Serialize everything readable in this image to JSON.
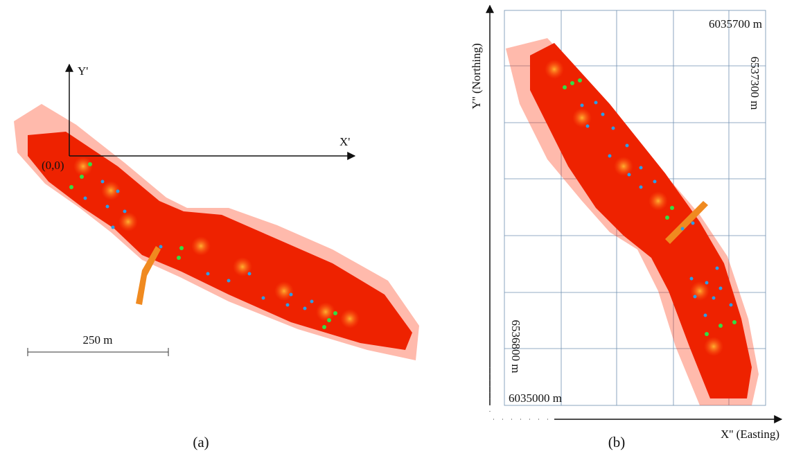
{
  "panel_a": {
    "y_axis": "Y'",
    "x_axis": "X'",
    "origin": "(0,0)",
    "scale_bar": "250 m",
    "caption": "(a)"
  },
  "panel_b": {
    "y_axis": "Y'' (Northing)",
    "x_axis": "X'' (Easting)",
    "top_easting": "6035700 m",
    "top_northing": "6537300 m",
    "bottom_northing": "6536800 m",
    "bottom_easting": "6035000 m",
    "caption": "(b)"
  }
}
